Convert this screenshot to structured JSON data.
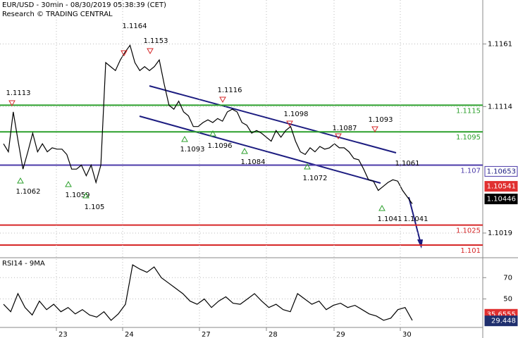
{
  "chart_data": [
    {
      "type": "line",
      "title": "EUR/USD - 30min - 08/30/2019 05:38:39 (CET)",
      "subtitle": "Research © TRADING CENTRAL",
      "date_labels": [
        "23",
        "24",
        "27",
        "28",
        "29",
        "30"
      ],
      "color": "#000000",
      "values": [
        1.1086,
        1.108,
        1.111,
        1.1088,
        1.1067,
        1.108,
        1.1094,
        1.108,
        1.1086,
        1.108,
        1.1083,
        1.1082,
        1.1082,
        1.1078,
        1.1067,
        1.1067,
        1.107,
        1.1062,
        1.107,
        1.1057,
        1.107,
        1.1147,
        1.1144,
        1.1141,
        1.1149,
        1.1155,
        1.116,
        1.1147,
        1.1141,
        1.1144,
        1.1141,
        1.1144,
        1.1149,
        1.1131,
        1.1115,
        1.1112,
        1.1118,
        1.111,
        1.1107,
        1.1099,
        1.1099,
        1.1102,
        1.1104,
        1.1102,
        1.1105,
        1.1103,
        1.111,
        1.1112,
        1.111,
        1.1102,
        1.11,
        1.1094,
        1.1096,
        1.1094,
        1.1091,
        1.1088,
        1.1096,
        1.1091,
        1.1096,
        1.1099,
        1.1088,
        1.108,
        1.1078,
        1.1083,
        1.108,
        1.1084,
        1.1082,
        1.1083,
        1.1086,
        1.1083,
        1.1083,
        1.108,
        1.1075,
        1.1074,
        1.1067,
        1.1059,
        1.1058,
        1.1051,
        1.1054,
        1.1057,
        1.1059,
        1.1058,
        1.1051,
        1.1046,
        1.1041
      ],
      "ylim": [
        1.1001,
        1.1194
      ],
      "yticks": [
        1.1161,
        1.1114,
        1.1019
      ],
      "grid": true,
      "levels": [
        {
          "value": 1.1115,
          "color": "#2ca02c"
        },
        {
          "value": 1.1095,
          "color": "#2ca02c"
        },
        {
          "value": 1.107,
          "color": "#4b3aa8"
        },
        {
          "value": 1.1025,
          "color": "#d62728"
        },
        {
          "value": 1.101,
          "color": "#d62728"
        }
      ],
      "price_tags": [
        {
          "value": 1.10653,
          "color": "#ffffff"
        },
        {
          "value": 1.10541,
          "color": "#e03030"
        },
        {
          "value": 1.10446,
          "color": "#000000"
        }
      ],
      "annotations": [
        1.1164,
        1.1153,
        1.1113,
        1.1116,
        1.1098,
        1.1087,
        1.1093,
        1.1062,
        1.1059,
        1.105,
        1.1093,
        1.1096,
        1.1084,
        1.1072,
        1.1041,
        1.1041,
        1.1061
      ]
    },
    {
      "type": "line",
      "title": "RSI14 - 9MA",
      "color": "#000000",
      "values": [
        45,
        38,
        55,
        42,
        35,
        48,
        40,
        45,
        38,
        42,
        36,
        40,
        35,
        33,
        38,
        30,
        36,
        45,
        82,
        78,
        75,
        80,
        70,
        65,
        60,
        55,
        48,
        45,
        50,
        42,
        48,
        52,
        46,
        45,
        50,
        55,
        48,
        42,
        45,
        40,
        38,
        55,
        50,
        45,
        48,
        40,
        44,
        46,
        42,
        44,
        40,
        36,
        34,
        30,
        32,
        40,
        42,
        30
      ],
      "ylim": [
        23.3,
        88
      ],
      "yticks": [
        70,
        50
      ],
      "grid": true,
      "price_tags": [
        {
          "value": 35.6555,
          "color": "#e03030"
        },
        {
          "value": 29.448,
          "color": "#1f2f6e"
        }
      ]
    }
  ]
}
